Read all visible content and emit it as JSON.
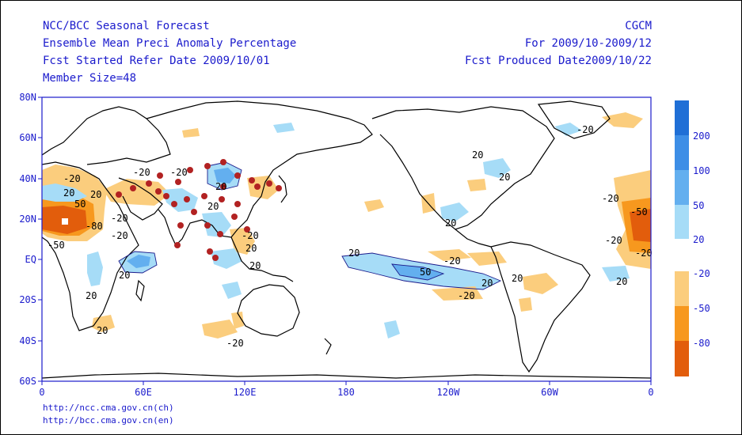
{
  "header": {
    "left": [
      "NCC/BCC Seasonal Forecast",
      "Ensemble Mean Preci Anomaly Percentage",
      "Fcst Started Refer Date 2009/10/01",
      "Member Size=48"
    ],
    "right": [
      "CGCM",
      "For 2009/10-2009/12",
      "Fcst Produced Date2009/10/22"
    ]
  },
  "axes": {
    "lat_labels": [
      "80N",
      "60N",
      "40N",
      "20N",
      "EQ",
      "20S",
      "40S",
      "60S"
    ],
    "lon_labels": [
      "0",
      "60E",
      "120E",
      "180",
      "120W",
      "60W",
      "0"
    ]
  },
  "contour_labels": [
    "-20",
    "-20",
    "20",
    "20",
    "50",
    "-80",
    "-50",
    "-20",
    "20",
    "20",
    "20",
    "20",
    "-20",
    "20",
    "-20",
    "20",
    "20",
    "20",
    "-20",
    "20",
    "20",
    "-20",
    "-20",
    "20",
    "50",
    "-20",
    "20",
    "-20",
    "-20",
    "-50",
    "-20",
    "20",
    "20",
    "-20"
  ],
  "legend": {
    "wet": {
      "labels": [
        "200",
        "100",
        "50",
        "20"
      ],
      "colors": [
        "#1f6fd6",
        "#3d8ee6",
        "#63afef",
        "#a6dcf7"
      ]
    },
    "dry": {
      "labels": [
        "-20",
        "-50",
        "-80"
      ],
      "colors": [
        "#fbcd7d",
        "#f7981e",
        "#e25d0c"
      ]
    }
  },
  "colors": {
    "text": "#1a1acc",
    "stations": "#b22222",
    "coast": "#000000"
  },
  "footer": {
    "urls": [
      "http://ncc.cma.gov.cn(ch)",
      "http://bcc.cma.gov.cn(en)"
    ]
  }
}
